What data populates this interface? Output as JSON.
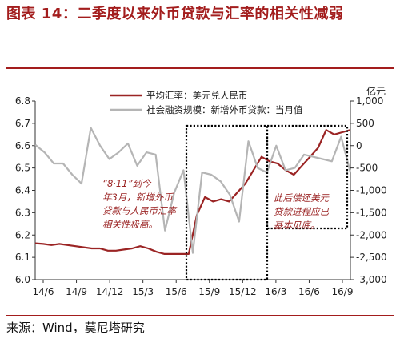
{
  "figure": {
    "title": "图表 14：二季度以来外币贷款与汇率的相关性减弱",
    "source": "来源：Wind，莫尼塔研究"
  },
  "chart_data": {
    "type": "line",
    "x_tick_labels": [
      "14/6",
      "14/9",
      "14/12",
      "15/3",
      "15/6",
      "15/9",
      "15/12",
      "16/3",
      "16/6",
      "16/9"
    ],
    "y_left": {
      "ticks": [
        "6.8",
        "6.7",
        "6.6",
        "6.5",
        "6.4",
        "6.3",
        "6.2",
        "6.1",
        "6.0"
      ],
      "range": [
        6.0,
        6.8
      ]
    },
    "y_right": {
      "unit": "亿元",
      "ticks": [
        "1,000",
        "500",
        "0",
        "-500",
        "-1,000",
        "-1,500",
        "-2,000",
        "-2,500",
        "-3,000"
      ],
      "range": [
        -3000,
        1000
      ]
    },
    "series": [
      {
        "name": "平均汇率：美元兑人民币",
        "axis": "left",
        "color": "#9b2424",
        "values": [
          6.163,
          6.16,
          6.155,
          6.16,
          6.155,
          6.15,
          6.145,
          6.14,
          6.14,
          6.13,
          6.13,
          6.135,
          6.14,
          6.15,
          6.14,
          6.125,
          6.115,
          6.115,
          6.115,
          6.115,
          6.29,
          6.37,
          6.35,
          6.36,
          6.35,
          6.39,
          6.43,
          6.49,
          6.55,
          6.53,
          6.52,
          6.49,
          6.47,
          6.51,
          6.55,
          6.59,
          6.67,
          6.65,
          6.66,
          6.67
        ]
      },
      {
        "name": "社会融资规模：新增外币贷款：当月值",
        "axis": "right",
        "color": "#b5b5b5",
        "values": [
          20,
          -150,
          -400,
          -400,
          -650,
          -850,
          400,
          0,
          -300,
          -150,
          50,
          -450,
          -150,
          -200,
          -1900,
          -1050,
          -550,
          -2400,
          -600,
          -650,
          -800,
          -1100,
          -1700,
          100,
          -500,
          -600,
          0,
          -550,
          -500,
          -200,
          -250,
          -300,
          -350,
          200,
          -600
        ]
      }
    ],
    "annotations": [
      {
        "text": "“8·11”到今年3月，新增外币贷款与人民币汇率相关性极高。",
        "color": "#9b2424"
      },
      {
        "text": "此后偿还美元贷款进程应已基本见底。",
        "color": "#9b2424"
      }
    ],
    "legend_position": "top-right",
    "grid": false
  }
}
